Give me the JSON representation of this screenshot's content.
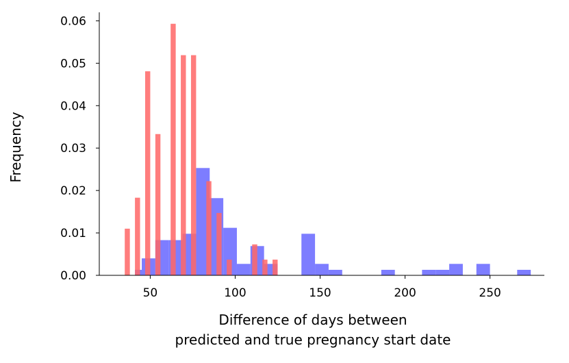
{
  "chart_data": {
    "type": "bar",
    "title": "",
    "xlabel_lines": [
      "Difference of days between",
      "predicted and true pregnancy start date"
    ],
    "ylabel": "Frequency",
    "xlim": [
      20,
      282
    ],
    "ylim": [
      0,
      0.062
    ],
    "xticks": [
      50,
      100,
      150,
      200,
      250
    ],
    "yticks": [
      0.0,
      0.01,
      0.02,
      0.03,
      0.04,
      0.05,
      0.06
    ],
    "ytick_labels": [
      "0.00",
      "0.01",
      "0.02",
      "0.03",
      "0.04",
      "0.05",
      "0.06"
    ],
    "grid": false,
    "legend": "none",
    "series": [
      {
        "color": "#6666ff",
        "opacity": 0.85,
        "bins": [
          {
            "x0": 41,
            "x1": 45,
            "y": 0.0013
          },
          {
            "x0": 45,
            "x1": 53,
            "y": 0.004
          },
          {
            "x0": 53,
            "x1": 61,
            "y": 0.0083
          },
          {
            "x0": 61,
            "x1": 69,
            "y": 0.0083
          },
          {
            "x0": 69,
            "x1": 77,
            "y": 0.0098
          },
          {
            "x0": 77,
            "x1": 85,
            "y": 0.0253
          },
          {
            "x0": 85,
            "x1": 93,
            "y": 0.0182
          },
          {
            "x0": 93,
            "x1": 101,
            "y": 0.0112
          },
          {
            "x0": 101,
            "x1": 109,
            "y": 0.0027
          },
          {
            "x0": 109,
            "x1": 117,
            "y": 0.0069
          },
          {
            "x0": 117,
            "x1": 125,
            "y": 0.0027
          },
          {
            "x0": 139,
            "x1": 147,
            "y": 0.0098
          },
          {
            "x0": 147,
            "x1": 155,
            "y": 0.0027
          },
          {
            "x0": 155,
            "x1": 163,
            "y": 0.0013
          },
          {
            "x0": 186,
            "x1": 194,
            "y": 0.0013
          },
          {
            "x0": 210,
            "x1": 218,
            "y": 0.0013
          },
          {
            "x0": 218,
            "x1": 226,
            "y": 0.0013
          },
          {
            "x0": 226,
            "x1": 234,
            "y": 0.0027
          },
          {
            "x0": 242,
            "x1": 250,
            "y": 0.0027
          },
          {
            "x0": 266,
            "x1": 274,
            "y": 0.0013
          }
        ]
      },
      {
        "color": "#ff6666",
        "opacity": 0.85,
        "bins": [
          {
            "x0": 35,
            "x1": 38,
            "y": 0.011
          },
          {
            "x0": 41,
            "x1": 44,
            "y": 0.0183
          },
          {
            "x0": 47,
            "x1": 50,
            "y": 0.0481
          },
          {
            "x0": 53,
            "x1": 56,
            "y": 0.0333
          },
          {
            "x0": 62,
            "x1": 65,
            "y": 0.0593
          },
          {
            "x0": 68,
            "x1": 71,
            "y": 0.0519
          },
          {
            "x0": 74,
            "x1": 77,
            "y": 0.0519
          },
          {
            "x0": 83,
            "x1": 86,
            "y": 0.0222
          },
          {
            "x0": 89,
            "x1": 92,
            "y": 0.0147
          },
          {
            "x0": 95,
            "x1": 98,
            "y": 0.0037
          },
          {
            "x0": 110,
            "x1": 113,
            "y": 0.0073
          },
          {
            "x0": 116,
            "x1": 119,
            "y": 0.0037
          },
          {
            "x0": 122,
            "x1": 125,
            "y": 0.0037
          }
        ]
      }
    ]
  }
}
